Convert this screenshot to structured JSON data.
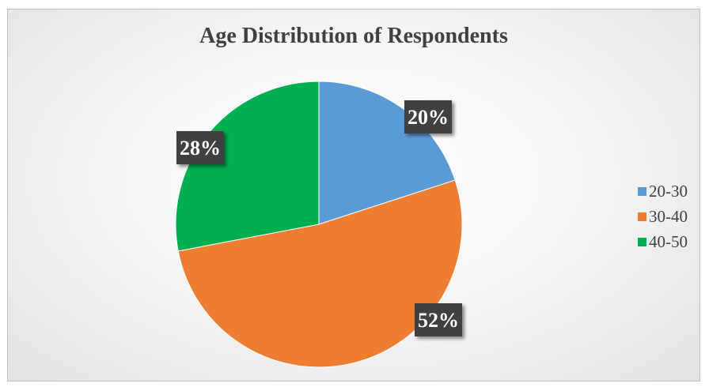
{
  "chart_data": {
    "type": "pie",
    "title": "Age Distribution of Respondents",
    "categories": [
      "20-30",
      "30-40",
      "40-50"
    ],
    "values": [
      20,
      52,
      28
    ],
    "labels": [
      "20%",
      "52%",
      "28%"
    ],
    "colors": [
      "#5b9bd5",
      "#ed7d31",
      "#00b050"
    ],
    "legend_position": "right",
    "label_style": "dark callout boxes with white bold text"
  }
}
